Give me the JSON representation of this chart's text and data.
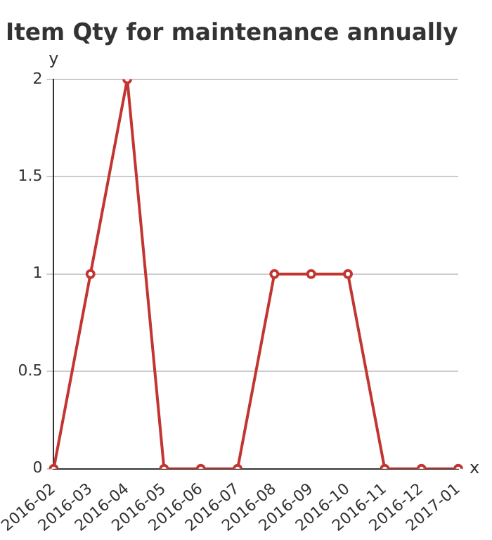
{
  "chart_data": {
    "type": "line",
    "title": "Item Qty for maintenance annually",
    "xlabel": "x",
    "ylabel": "y",
    "categories": [
      "2016-02",
      "2016-03",
      "2016-04",
      "2016-05",
      "2016-06",
      "2016-07",
      "2016-08",
      "2016-09",
      "2016-10",
      "2016-11",
      "2016-12",
      "2017-01"
    ],
    "series": [
      {
        "color": "#c23531",
        "values": [
          0,
          1,
          2,
          0,
          0,
          0,
          1,
          1,
          1,
          0,
          0,
          0
        ]
      }
    ],
    "ylim": [
      0,
      2
    ],
    "yticks": [
      0,
      0.5,
      1,
      1.5,
      2
    ],
    "grid": "y",
    "legend": false,
    "marker": "circle",
    "line_style": "solid"
  }
}
